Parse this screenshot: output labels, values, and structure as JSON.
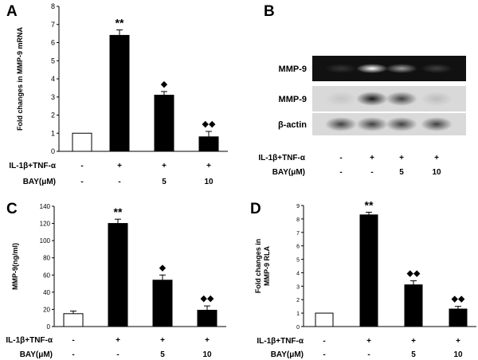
{
  "chart_data": [
    {
      "panel": "A",
      "type": "bar",
      "ylabel": "Fold changes in MMP-9 mRNA",
      "ylim": [
        0,
        8
      ],
      "yticks": [
        0,
        1,
        2,
        3,
        4,
        5,
        6,
        7,
        8
      ],
      "values": [
        1.0,
        6.4,
        3.1,
        0.8
      ],
      "errors": [
        0,
        0.3,
        0.2,
        0.3
      ],
      "bar_fill": [
        "#ffffff",
        "#000000",
        "#000000",
        "#000000"
      ],
      "markers": [
        "",
        "**",
        "◆",
        "◆◆"
      ],
      "treatment_rows": [
        {
          "label": "IL-1β+TNF-α",
          "values": [
            "-",
            "+",
            "+",
            "+"
          ]
        },
        {
          "label": "BAY(μM)",
          "values": [
            "-",
            "-",
            "5",
            "10"
          ]
        }
      ]
    },
    {
      "panel": "C",
      "type": "bar",
      "ylabel": "MMP-9(ng/ml)",
      "ylim": [
        0,
        140
      ],
      "yticks": [
        0,
        20,
        40,
        60,
        80,
        100,
        120,
        140
      ],
      "values": [
        15,
        120,
        54,
        19
      ],
      "errors": [
        3,
        5,
        6,
        5
      ],
      "bar_fill": [
        "#ffffff",
        "#000000",
        "#000000",
        "#000000"
      ],
      "markers": [
        "",
        "**",
        "◆",
        "◆◆"
      ],
      "treatment_rows": [
        {
          "label": "IL-1β+TNF-α",
          "values": [
            "-",
            "+",
            "+",
            "+"
          ]
        },
        {
          "label": "BAY(μM)",
          "values": [
            "-",
            "-",
            "5",
            "10"
          ]
        }
      ]
    },
    {
      "panel": "D",
      "type": "bar",
      "ylabel": "Fold changes in MMP-9 RLA",
      "ylabel_lines": [
        "Fold changes in",
        "MMP-9 RLA"
      ],
      "ylim": [
        0,
        9
      ],
      "yticks": [
        0,
        1,
        2,
        3,
        4,
        5,
        6,
        7,
        8,
        9
      ],
      "values": [
        1.0,
        8.3,
        3.1,
        1.3
      ],
      "errors": [
        0,
        0.2,
        0.3,
        0.2
      ],
      "bar_fill": [
        "#ffffff",
        "#000000",
        "#000000",
        "#000000"
      ],
      "markers": [
        "",
        "**",
        "◆◆",
        "◆◆"
      ],
      "treatment_rows": [
        {
          "label": "IL-1β+TNF-α",
          "values": [
            "-",
            "+",
            "+",
            "+"
          ]
        },
        {
          "label": "BAY(μM)",
          "values": [
            "-",
            "-",
            "5",
            "10"
          ]
        }
      ]
    }
  ],
  "panel_b": {
    "panel": "B",
    "rows": [
      {
        "label": "MMP-9",
        "kind": "zymogram",
        "intensities": [
          0.15,
          1.0,
          0.6,
          0.2
        ]
      },
      {
        "label": "MMP-9",
        "kind": "western",
        "intensities": [
          0.1,
          1.0,
          0.8,
          0.15
        ]
      },
      {
        "label": "β-actin",
        "kind": "western",
        "intensities": [
          0.8,
          0.8,
          0.8,
          0.8
        ]
      }
    ],
    "treatment_rows": [
      {
        "label": "IL-1β+TNF-α",
        "values": [
          "-",
          "+",
          "+",
          "+"
        ]
      },
      {
        "label": "BAY(μM)",
        "values": [
          "-",
          "-",
          "5",
          "10"
        ]
      }
    ]
  },
  "colors": {
    "axis": "#000000",
    "bar_dark": "#000000",
    "bar_light": "#ffffff",
    "zymo_bg": "#111111",
    "blot_bg": "#d9d9d9"
  }
}
